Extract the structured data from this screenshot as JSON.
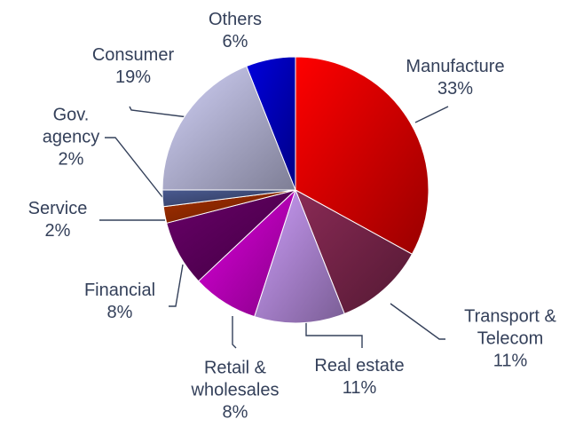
{
  "chart_data": {
    "type": "pie",
    "categories": [
      "Manufacture",
      "Transport & Telecom",
      "Real estate",
      "Retail & wholesales",
      "Financial",
      "Service",
      "Gov. agency",
      "Consumer",
      "Others"
    ],
    "values": [
      33,
      11,
      11,
      8,
      8,
      2,
      2,
      19,
      6
    ],
    "value_labels": [
      "33%",
      "11%",
      "11%",
      "8%",
      "8%",
      "2%",
      "2%",
      "19%",
      "6%"
    ],
    "colors": [
      "#ff0000",
      "#8a2a55",
      "#cc9cf8",
      "#dd00dd",
      "#6a006a",
      "#a83000",
      "#4a5a90",
      "#d2d2f8",
      "#0000dd"
    ]
  }
}
